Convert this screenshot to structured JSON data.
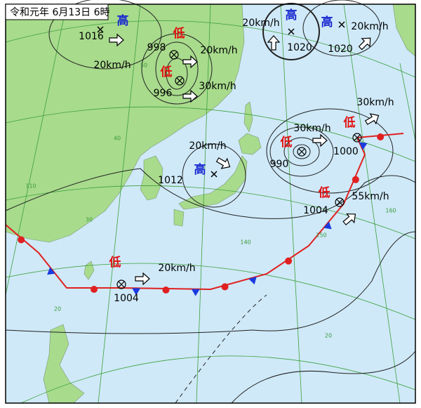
{
  "title": "令和元年 6月13日 6時",
  "pressure_systems": [
    {
      "symbol": "高",
      "label": "1016",
      "speed": "20km/h"
    },
    {
      "symbol": "低",
      "label": "998",
      "speed": "20km/h"
    },
    {
      "symbol": "低",
      "label": "996",
      "speed": "30km/h"
    },
    {
      "symbol": "高",
      "label": "1020",
      "speed": "20km/h"
    },
    {
      "symbol": "高",
      "label": "1020",
      "speed": "20km/h"
    },
    {
      "symbol": "高",
      "speed": "20km/h"
    },
    {
      "symbol": "低",
      "label": "990",
      "speed": "30km/h"
    },
    {
      "symbol": "低",
      "label": "1000",
      "speed": "30km/h"
    },
    {
      "symbol": "低",
      "label": "1004",
      "speed": "55km/h"
    },
    {
      "symbol": "低",
      "label": "1004",
      "speed": "20km/h"
    }
  ],
  "isobar_labels": [
    "1012"
  ],
  "grid_labels": [
    "50",
    "40",
    "30",
    "20",
    "110",
    "140",
    "150",
    "160",
    "20"
  ]
}
